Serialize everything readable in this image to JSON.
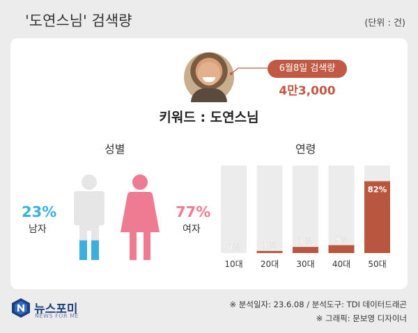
{
  "header": {
    "title": "'도연스님' 검색량",
    "unit": "(단위 : 건)"
  },
  "highlight": {
    "label": "6월8일 검색량",
    "value": "4만3,000"
  },
  "keyword": "키워드 : 도연스님",
  "gender": {
    "title": "성별",
    "male": {
      "label": "남자",
      "percent": "23%",
      "fraction": 0.23,
      "color": "#3bb0e0"
    },
    "female": {
      "label": "여자",
      "percent": "77%",
      "fraction": 0.77,
      "color": "#ef7b92"
    }
  },
  "chart_data": {
    "type": "bar",
    "title": "연령",
    "categories": [
      "10대",
      "20대",
      "30대",
      "40대",
      "50대"
    ],
    "values": [
      0,
      1,
      7,
      9,
      82
    ],
    "value_labels": [
      "0%",
      "1%",
      "7%",
      "9%",
      "82%"
    ],
    "ylim": [
      0,
      100
    ],
    "colors": {
      "bar": "#b85640",
      "track": "#ececec"
    }
  },
  "footer": {
    "logo": "뉴스포미",
    "logo_sub": "NEWS FOR ME",
    "source": "※ 분석일자: 23.6.08  / 분석도구: TDI 데이터드래곤",
    "credit": "※ 그래픽: 문보영 디자이너"
  }
}
